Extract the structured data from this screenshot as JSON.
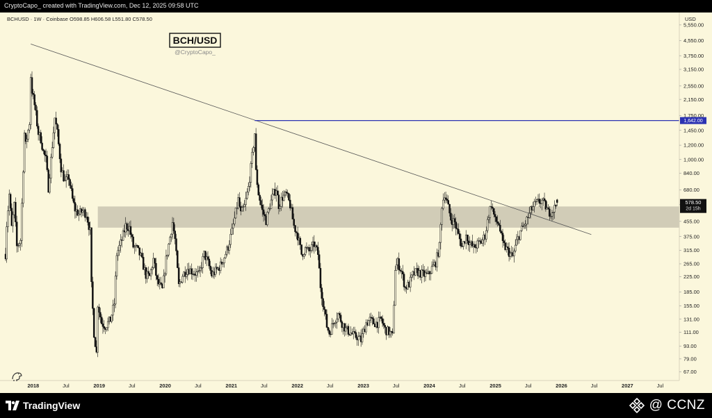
{
  "header": {
    "attribution": "CryptoCapo_ created with TradingView.com, Dec 12, 2025 09:58 UTC"
  },
  "chart_data": {
    "type": "candlestick",
    "legend_line": "BCHUSD · 1W · Coinbase  O598.85  H606.58  L551.80  C578.50",
    "title_box": "BCH/USD",
    "watermark": "@CryptoCapo_",
    "y_axis": {
      "unit_label": "USD",
      "scale": "log",
      "range": [
        60,
        6500
      ],
      "ticks": [
        "5,550.00",
        "4,550.00",
        "3,750.00",
        "3,150.00",
        "2,550.00",
        "2,150.00",
        "1,750.00",
        "1,450.00",
        "1,200.00",
        "1,000.00",
        "840.00",
        "680.00",
        "565.00",
        "455.00",
        "375.00",
        "315.00",
        "265.00",
        "225.00",
        "185.00",
        "155.00",
        "131.00",
        "111.00",
        "93.00",
        "79.00",
        "67.00"
      ]
    },
    "x_axis": {
      "range": [
        "2017-07-01",
        "2027-10-15"
      ],
      "ticks": [
        {
          "label": "2018",
          "date": "2018-01-01",
          "major": true
        },
        {
          "label": "Jul",
          "date": "2018-07-01",
          "major": false
        },
        {
          "label": "2019",
          "date": "2019-01-01",
          "major": true
        },
        {
          "label": "Jul",
          "date": "2019-07-01",
          "major": false
        },
        {
          "label": "2020",
          "date": "2020-01-01",
          "major": true
        },
        {
          "label": "Jul",
          "date": "2020-07-01",
          "major": false
        },
        {
          "label": "2021",
          "date": "2021-01-01",
          "major": true
        },
        {
          "label": "Jul",
          "date": "2021-07-01",
          "major": false
        },
        {
          "label": "2022",
          "date": "2022-01-01",
          "major": true
        },
        {
          "label": "Jul",
          "date": "2022-07-01",
          "major": false
        },
        {
          "label": "2023",
          "date": "2023-01-01",
          "major": true
        },
        {
          "label": "Jul",
          "date": "2023-07-01",
          "major": false
        },
        {
          "label": "2024",
          "date": "2024-01-01",
          "major": true
        },
        {
          "label": "Jul",
          "date": "2024-07-01",
          "major": false
        },
        {
          "label": "2025",
          "date": "2025-01-01",
          "major": true
        },
        {
          "label": "Jul",
          "date": "2025-07-01",
          "major": false
        },
        {
          "label": "2026",
          "date": "2026-01-01",
          "major": true
        },
        {
          "label": "Jul",
          "date": "2026-07-01",
          "major": false
        },
        {
          "label": "2027",
          "date": "2027-01-01",
          "major": true
        },
        {
          "label": "Jul",
          "date": "2027-07-01",
          "major": false
        }
      ]
    },
    "price_series": [
      [
        "2017-08-01",
        300
      ],
      [
        "2017-08-07",
        440
      ],
      [
        "2017-08-21",
        640
      ],
      [
        "2017-09-04",
        420
      ],
      [
        "2017-09-18",
        560
      ],
      [
        "2017-10-02",
        330
      ],
      [
        "2017-10-23",
        360
      ],
      [
        "2017-11-06",
        900
      ],
      [
        "2017-11-13",
        1400
      ],
      [
        "2017-11-20",
        1200
      ],
      [
        "2017-12-11",
        1600
      ],
      [
        "2017-12-18",
        2900
      ],
      [
        "2017-12-25",
        2400
      ],
      [
        "2018-01-08",
        2000
      ],
      [
        "2018-01-29",
        1400
      ],
      [
        "2018-02-12",
        1300
      ],
      [
        "2018-02-26",
        1100
      ],
      [
        "2018-03-12",
        1000
      ],
      [
        "2018-03-26",
        700
      ],
      [
        "2018-04-16",
        1200
      ],
      [
        "2018-04-30",
        1700
      ],
      [
        "2018-05-14",
        1400
      ],
      [
        "2018-06-04",
        900
      ],
      [
        "2018-06-25",
        750
      ],
      [
        "2018-07-16",
        800
      ],
      [
        "2018-08-06",
        600
      ],
      [
        "2018-08-20",
        530
      ],
      [
        "2018-09-10",
        500
      ],
      [
        "2018-10-01",
        520
      ],
      [
        "2018-10-22",
        500
      ],
      [
        "2018-11-12",
        400
      ],
      [
        "2018-11-19",
        200
      ],
      [
        "2018-12-03",
        110
      ],
      [
        "2018-12-17",
        85
      ],
      [
        "2018-12-24",
        160
      ],
      [
        "2019-01-14",
        125
      ],
      [
        "2019-02-04",
        120
      ],
      [
        "2019-03-04",
        130
      ],
      [
        "2019-03-25",
        160
      ],
      [
        "2019-04-08",
        300
      ],
      [
        "2019-05-06",
        360
      ],
      [
        "2019-05-27",
        430
      ],
      [
        "2019-06-17",
        420
      ],
      [
        "2019-07-08",
        330
      ],
      [
        "2019-07-29",
        320
      ],
      [
        "2019-08-19",
        290
      ],
      [
        "2019-09-16",
        230
      ],
      [
        "2019-10-07",
        225
      ],
      [
        "2019-10-28",
        280
      ],
      [
        "2019-11-18",
        210
      ],
      [
        "2019-12-16",
        190
      ],
      [
        "2020-01-06",
        280
      ],
      [
        "2020-02-10",
        450
      ],
      [
        "2020-02-24",
        360
      ],
      [
        "2020-03-16",
        200
      ],
      [
        "2020-04-06",
        230
      ],
      [
        "2020-05-04",
        250
      ],
      [
        "2020-06-01",
        240
      ],
      [
        "2020-07-06",
        230
      ],
      [
        "2020-08-03",
        300
      ],
      [
        "2020-08-24",
        270
      ],
      [
        "2020-09-14",
        230
      ],
      [
        "2020-10-12",
        245
      ],
      [
        "2020-11-02",
        260
      ],
      [
        "2020-11-23",
        290
      ],
      [
        "2020-12-14",
        330
      ],
      [
        "2021-01-04",
        400
      ],
      [
        "2021-02-08",
        600
      ],
      [
        "2021-02-22",
        500
      ],
      [
        "2021-03-15",
        550
      ],
      [
        "2021-04-05",
        700
      ],
      [
        "2021-04-19",
        900
      ],
      [
        "2021-05-10",
        1400
      ],
      [
        "2021-05-17",
        850
      ],
      [
        "2021-05-31",
        650
      ],
      [
        "2021-06-21",
        520
      ],
      [
        "2021-07-12",
        460
      ],
      [
        "2021-08-02",
        560
      ],
      [
        "2021-08-23",
        650
      ],
      [
        "2021-09-06",
        690
      ],
      [
        "2021-09-20",
        560
      ],
      [
        "2021-10-11",
        620
      ],
      [
        "2021-11-01",
        640
      ],
      [
        "2021-11-22",
        560
      ],
      [
        "2021-12-13",
        430
      ],
      [
        "2022-01-03",
        380
      ],
      [
        "2022-01-24",
        300
      ],
      [
        "2022-02-14",
        320
      ],
      [
        "2022-03-07",
        310
      ],
      [
        "2022-04-04",
        340
      ],
      [
        "2022-04-25",
        300
      ],
      [
        "2022-05-09",
        200
      ],
      [
        "2022-06-13",
        120
      ],
      [
        "2022-06-27",
        110
      ],
      [
        "2022-07-25",
        130
      ],
      [
        "2022-08-15",
        140
      ],
      [
        "2022-09-05",
        125
      ],
      [
        "2022-09-26",
        115
      ],
      [
        "2022-10-24",
        110
      ],
      [
        "2022-11-14",
        105
      ],
      [
        "2022-11-28",
        105
      ],
      [
        "2022-12-19",
        100
      ],
      [
        "2023-01-16",
        125
      ],
      [
        "2023-02-06",
        130
      ],
      [
        "2023-02-27",
        125
      ],
      [
        "2023-03-20",
        125
      ],
      [
        "2023-04-10",
        130
      ],
      [
        "2023-05-01",
        115
      ],
      [
        "2023-05-29",
        110
      ],
      [
        "2023-06-12",
        105
      ],
      [
        "2023-06-26",
        250
      ],
      [
        "2023-07-10",
        270
      ],
      [
        "2023-07-31",
        240
      ],
      [
        "2023-08-21",
        195
      ],
      [
        "2023-09-11",
        205
      ],
      [
        "2023-10-02",
        230
      ],
      [
        "2023-10-23",
        240
      ],
      [
        "2023-11-13",
        235
      ],
      [
        "2023-12-04",
        230
      ],
      [
        "2023-12-25",
        230
      ],
      [
        "2024-01-15",
        250
      ],
      [
        "2024-02-05",
        270
      ],
      [
        "2024-02-26",
        330
      ],
      [
        "2024-03-11",
        560
      ],
      [
        "2024-03-25",
        650
      ],
      [
        "2024-04-08",
        580
      ],
      [
        "2024-04-29",
        470
      ],
      [
        "2024-05-20",
        450
      ],
      [
        "2024-06-10",
        380
      ],
      [
        "2024-07-01",
        330
      ],
      [
        "2024-07-22",
        380
      ],
      [
        "2024-08-12",
        345
      ],
      [
        "2024-09-02",
        325
      ],
      [
        "2024-09-23",
        340
      ],
      [
        "2024-10-14",
        350
      ],
      [
        "2024-11-04",
        380
      ],
      [
        "2024-11-25",
        500
      ],
      [
        "2024-12-09",
        570
      ],
      [
        "2024-12-30",
        460
      ],
      [
        "2025-01-20",
        440
      ],
      [
        "2025-02-10",
        340
      ],
      [
        "2025-03-03",
        320
      ],
      [
        "2025-03-24",
        300
      ],
      [
        "2025-04-07",
        290
      ],
      [
        "2025-04-28",
        350
      ],
      [
        "2025-05-19",
        400
      ],
      [
        "2025-06-09",
        430
      ],
      [
        "2025-06-30",
        480
      ],
      [
        "2025-07-14",
        520
      ],
      [
        "2025-08-04",
        560
      ],
      [
        "2025-08-25",
        580
      ],
      [
        "2025-09-15",
        590
      ],
      [
        "2025-10-06",
        550
      ],
      [
        "2025-10-20",
        510
      ],
      [
        "2025-11-10",
        520
      ],
      [
        "2025-11-24",
        540
      ],
      [
        "2025-12-08",
        578.5
      ]
    ],
    "annotations": {
      "trendline": {
        "from": {
          "date": "2017-12-18",
          "price": 4350
        },
        "to": {
          "date": "2026-06-15",
          "price": 385
        }
      },
      "horizontal_level": {
        "price": 1642,
        "from": "2021-05-10",
        "label": "1,642.00",
        "color": "#2b32b2"
      },
      "support_zone": {
        "low": 420,
        "high": 550,
        "from": "2018-12-24",
        "color": "#c9c4b0"
      },
      "last_price": {
        "label": "578.50",
        "countdown": "2d 15h",
        "price": 578.5
      }
    }
  },
  "footer": {
    "brand": "TradingView",
    "watermark": "@ CCNZ"
  }
}
